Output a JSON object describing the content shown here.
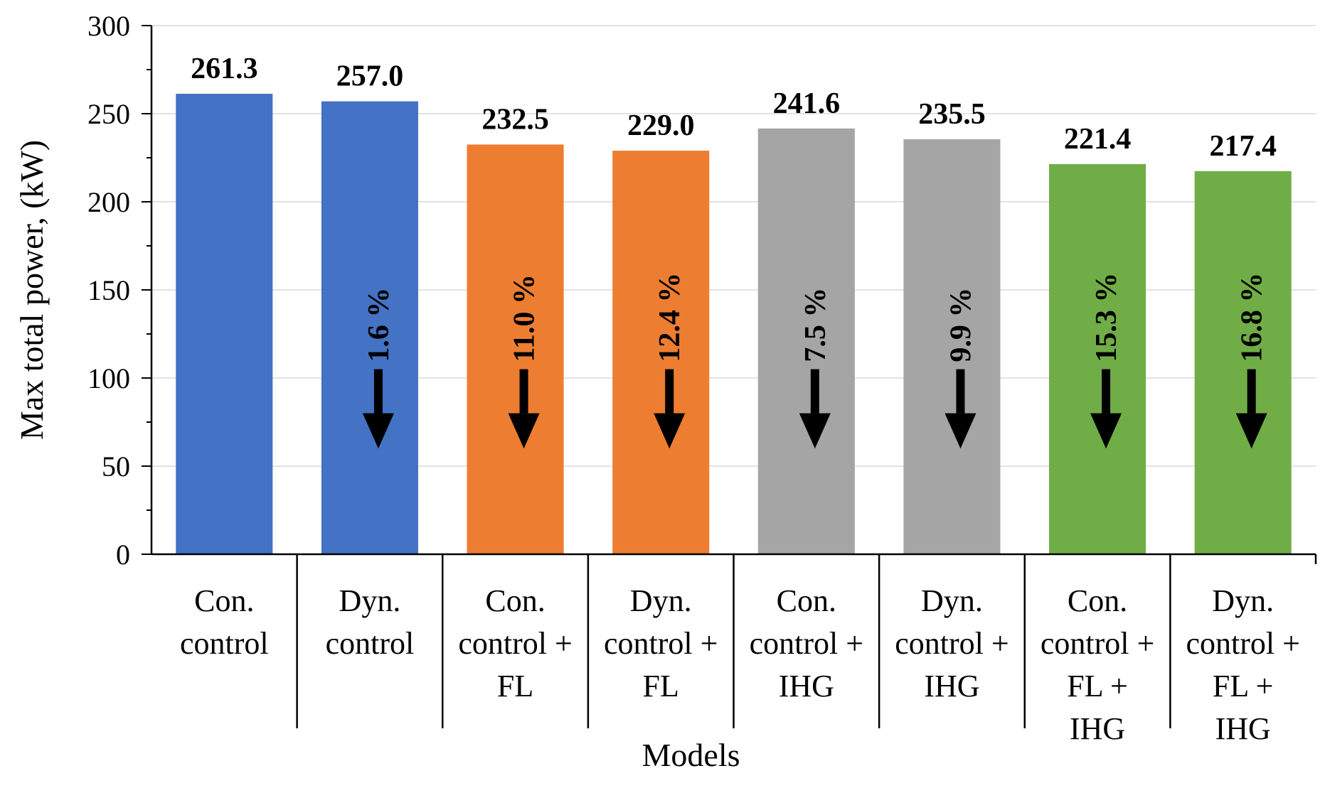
{
  "chart_data": {
    "type": "bar",
    "title": "",
    "xlabel": "Models",
    "ylabel": "Max total  power, (kW)",
    "ylim": [
      0,
      300
    ],
    "ytick_step": 50,
    "yticks": [
      "0",
      "50",
      "100",
      "150",
      "200",
      "250",
      "300"
    ],
    "grid": true,
    "categories": [
      [
        "Con.",
        "control"
      ],
      [
        "Dyn.",
        "control"
      ],
      [
        "Con.",
        "control +",
        "FL"
      ],
      [
        "Dyn.",
        "control +",
        "FL"
      ],
      [
        "Con.",
        "control +",
        "IHG"
      ],
      [
        "Dyn.",
        "control +",
        "IHG"
      ],
      [
        "Con.",
        "control +",
        "FL +",
        "IHG"
      ],
      [
        "Dyn.",
        "control +",
        "FL +",
        "IHG"
      ]
    ],
    "values": [
      261.3,
      257.0,
      232.5,
      229.0,
      241.6,
      235.5,
      221.4,
      217.4
    ],
    "value_labels": [
      "261.3",
      "257.0",
      "232.5",
      "229.0",
      "241.6",
      "235.5",
      "221.4",
      "217.4"
    ],
    "reductions": [
      "",
      "1.6 %",
      "11.0 %",
      "12.4 %",
      "7.5 %",
      "9.9 %",
      "15.3 %",
      "16.8 %"
    ],
    "colors": [
      "#4472C4",
      "#4472C4",
      "#ED7D31",
      "#ED7D31",
      "#A5A5A5",
      "#A5A5A5",
      "#70AD47",
      "#70AD47"
    ]
  }
}
